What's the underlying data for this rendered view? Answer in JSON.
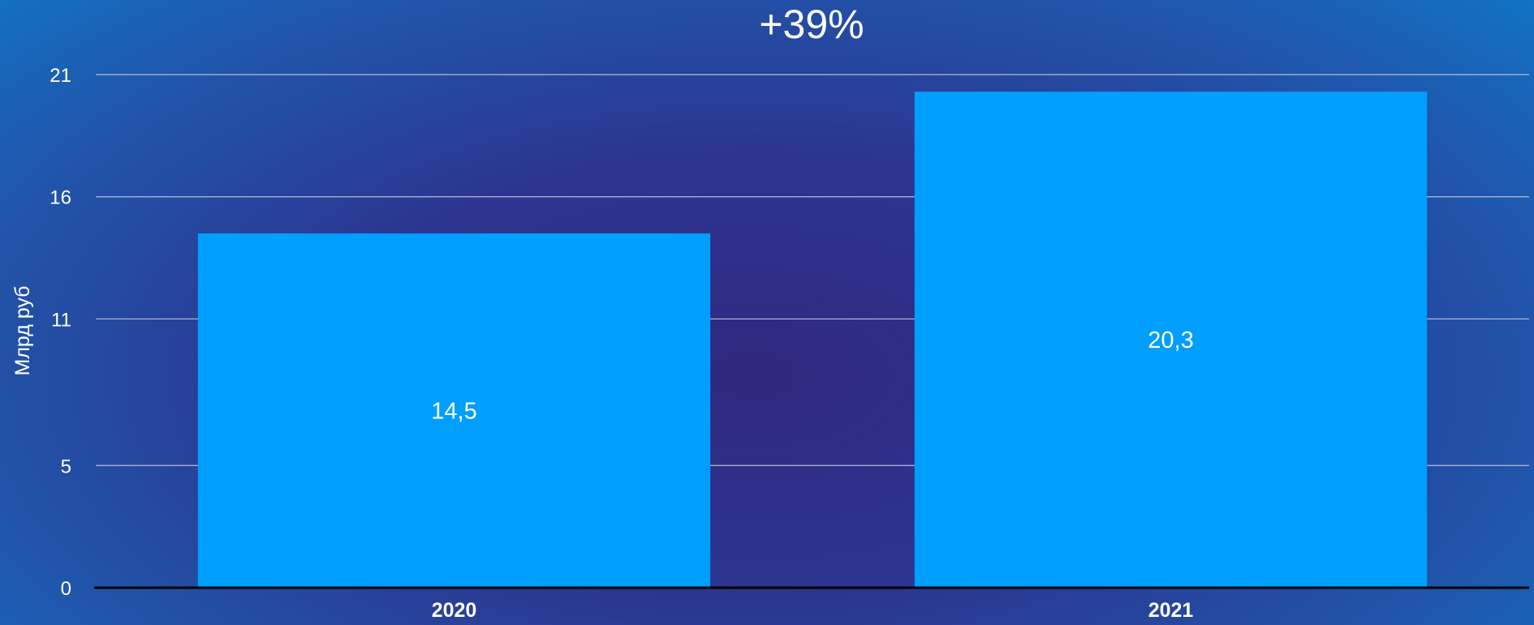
{
  "chart_data": {
    "type": "bar",
    "title": "+39%",
    "ylabel": "Млрд руб",
    "xlabel": "",
    "categories": [
      "2020",
      "2021"
    ],
    "values": [
      14.5,
      20.3
    ],
    "value_labels": [
      "14,5",
      "20,3"
    ],
    "yticks": [
      0,
      5,
      11,
      16,
      21
    ],
    "ylim": [
      0,
      21
    ],
    "grid": true,
    "legend": "none",
    "colors": {
      "bar": "#009ffd",
      "grid": "#b4bfdc",
      "axis": "#000000",
      "text": "#ffffff"
    }
  }
}
